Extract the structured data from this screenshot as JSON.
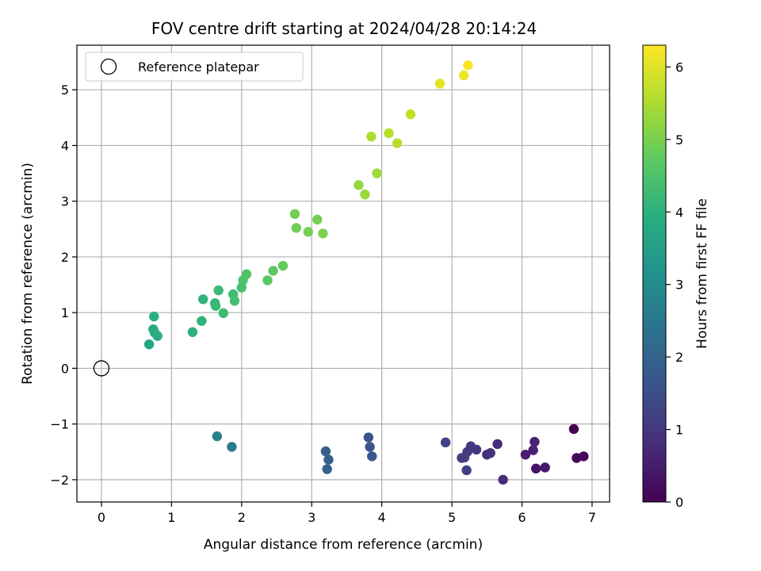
{
  "chart_data": {
    "type": "scatter",
    "title": "FOV centre drift starting at 2024/04/28 20:14:24",
    "xlabel": "Angular distance from reference (arcmin)",
    "ylabel": "Rotation from reference (arcmin)",
    "xlim": [
      -0.35,
      7.25
    ],
    "ylim": [
      -2.4,
      5.8
    ],
    "xticks": [
      0,
      1,
      2,
      3,
      4,
      5,
      6,
      7
    ],
    "yticks": [
      -2,
      -1,
      0,
      1,
      2,
      3,
      4,
      5
    ],
    "grid": true,
    "legend": {
      "placement": "top-left",
      "entries": [
        "Reference platepar"
      ]
    },
    "reference_point": {
      "x": 0,
      "y": 0
    },
    "colorbar": {
      "label": "Hours from first FF file",
      "range": [
        0,
        6.3
      ],
      "ticks": [
        0,
        1,
        2,
        3,
        4,
        5,
        6
      ],
      "colormap": "viridis"
    },
    "points": [
      {
        "x": 6.74,
        "y": -1.09,
        "c": 0.0
      },
      {
        "x": 6.78,
        "y": -1.61,
        "c": 0.1
      },
      {
        "x": 6.88,
        "y": -1.58,
        "c": 0.15
      },
      {
        "x": 6.2,
        "y": -1.8,
        "c": 0.35
      },
      {
        "x": 6.33,
        "y": -1.78,
        "c": 0.4
      },
      {
        "x": 6.05,
        "y": -1.55,
        "c": 0.5
      },
      {
        "x": 6.16,
        "y": -1.47,
        "c": 0.55
      },
      {
        "x": 6.18,
        "y": -1.32,
        "c": 0.6
      },
      {
        "x": 5.65,
        "y": -1.36,
        "c": 0.75
      },
      {
        "x": 5.73,
        "y": -2.0,
        "c": 0.8
      },
      {
        "x": 5.5,
        "y": -1.55,
        "c": 0.85
      },
      {
        "x": 5.55,
        "y": -1.52,
        "c": 0.9
      },
      {
        "x": 5.35,
        "y": -1.46,
        "c": 1.0
      },
      {
        "x": 5.27,
        "y": -1.4,
        "c": 1.05
      },
      {
        "x": 5.22,
        "y": -1.5,
        "c": 1.05
      },
      {
        "x": 5.14,
        "y": -1.61,
        "c": 1.1
      },
      {
        "x": 5.18,
        "y": -1.6,
        "c": 1.1
      },
      {
        "x": 5.21,
        "y": -1.83,
        "c": 1.15
      },
      {
        "x": 4.91,
        "y": -1.33,
        "c": 1.2
      },
      {
        "x": 3.81,
        "y": -1.24,
        "c": 1.6
      },
      {
        "x": 3.83,
        "y": -1.41,
        "c": 1.65
      },
      {
        "x": 3.86,
        "y": -1.58,
        "c": 1.7
      },
      {
        "x": 3.2,
        "y": -1.49,
        "c": 1.85
      },
      {
        "x": 3.24,
        "y": -1.64,
        "c": 1.9
      },
      {
        "x": 3.22,
        "y": -1.81,
        "c": 1.95
      },
      {
        "x": 1.86,
        "y": -1.41,
        "c": 2.6
      },
      {
        "x": 1.65,
        "y": -1.22,
        "c": 2.75
      },
      {
        "x": 0.68,
        "y": 0.43,
        "c": 3.75
      },
      {
        "x": 0.74,
        "y": 0.7,
        "c": 3.8
      },
      {
        "x": 0.76,
        "y": 0.64,
        "c": 3.85
      },
      {
        "x": 0.8,
        "y": 0.58,
        "c": 3.9
      },
      {
        "x": 0.75,
        "y": 0.93,
        "c": 3.95
      },
      {
        "x": 1.3,
        "y": 0.65,
        "c": 4.0
      },
      {
        "x": 1.43,
        "y": 0.85,
        "c": 4.05
      },
      {
        "x": 1.45,
        "y": 1.24,
        "c": 4.1
      },
      {
        "x": 1.62,
        "y": 1.17,
        "c": 4.15
      },
      {
        "x": 1.63,
        "y": 1.12,
        "c": 4.2
      },
      {
        "x": 1.67,
        "y": 1.4,
        "c": 4.25
      },
      {
        "x": 1.74,
        "y": 0.99,
        "c": 4.3
      },
      {
        "x": 1.88,
        "y": 1.33,
        "c": 4.35
      },
      {
        "x": 1.9,
        "y": 1.21,
        "c": 4.4
      },
      {
        "x": 2.0,
        "y": 1.45,
        "c": 4.45
      },
      {
        "x": 2.02,
        "y": 1.58,
        "c": 4.5
      },
      {
        "x": 2.07,
        "y": 1.69,
        "c": 4.55
      },
      {
        "x": 2.37,
        "y": 1.58,
        "c": 4.65
      },
      {
        "x": 2.45,
        "y": 1.75,
        "c": 4.7
      },
      {
        "x": 2.59,
        "y": 1.84,
        "c": 4.8
      },
      {
        "x": 2.76,
        "y": 2.77,
        "c": 4.95
      },
      {
        "x": 2.78,
        "y": 2.52,
        "c": 4.95
      },
      {
        "x": 2.95,
        "y": 2.45,
        "c": 5.0
      },
      {
        "x": 3.08,
        "y": 2.67,
        "c": 5.0
      },
      {
        "x": 3.16,
        "y": 2.42,
        "c": 5.05
      },
      {
        "x": 3.67,
        "y": 3.29,
        "c": 5.3
      },
      {
        "x": 3.76,
        "y": 3.12,
        "c": 5.35
      },
      {
        "x": 3.93,
        "y": 3.5,
        "c": 5.4
      },
      {
        "x": 3.85,
        "y": 4.16,
        "c": 5.55
      },
      {
        "x": 4.1,
        "y": 4.22,
        "c": 5.6
      },
      {
        "x": 4.22,
        "y": 4.04,
        "c": 5.6
      },
      {
        "x": 4.41,
        "y": 4.56,
        "c": 5.7
      },
      {
        "x": 4.83,
        "y": 5.11,
        "c": 6.05
      },
      {
        "x": 5.17,
        "y": 5.26,
        "c": 6.15
      },
      {
        "x": 5.23,
        "y": 5.44,
        "c": 6.25
      }
    ]
  }
}
